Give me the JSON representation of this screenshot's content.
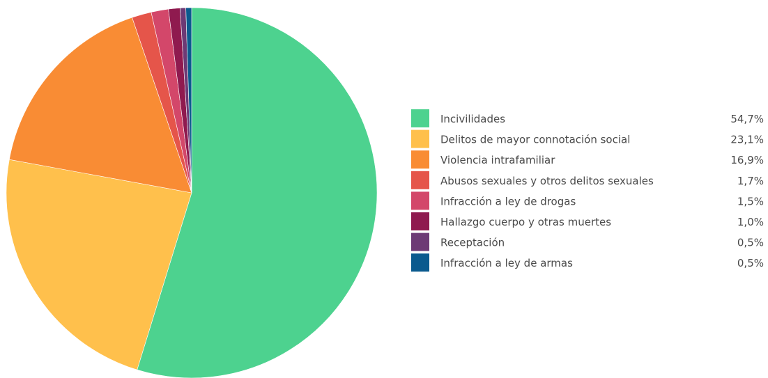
{
  "chart_data": {
    "type": "pie",
    "title": "",
    "categories": [
      "Incivilidades",
      "Delitos de mayor connotación social",
      "Violencia intrafamiliar",
      "Abusos sexuales y otros delitos sexuales",
      "Infracción a ley de drogas",
      "Hallazgo cuerpo y otras muertes",
      "Receptación",
      "Infracción a ley de armas"
    ],
    "values": [
      54.7,
      23.1,
      16.9,
      1.7,
      1.5,
      1.0,
      0.5,
      0.5
    ],
    "value_labels": [
      "54,7%",
      "23,1%",
      "16,9%",
      "1,7%",
      "1,5%",
      "1,0%",
      "0,5%",
      "0,5%"
    ],
    "colors": [
      "#4dd28f",
      "#ffc04c",
      "#f98c34",
      "#e5554a",
      "#d3476a",
      "#8f1a4f",
      "#6d3a75",
      "#0b5a8e"
    ],
    "start_angle_deg": 0,
    "direction": "clockwise",
    "legend_position": "right"
  }
}
